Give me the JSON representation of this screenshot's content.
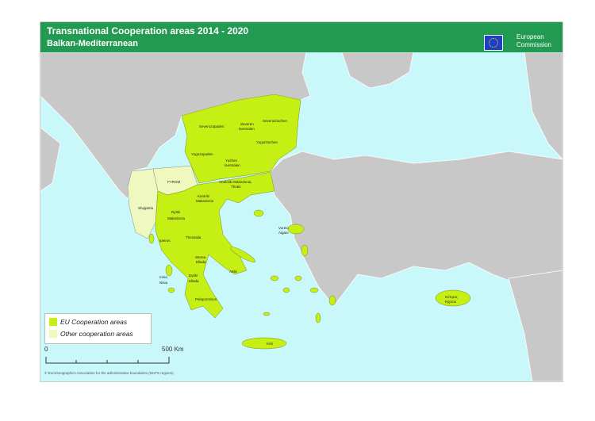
{
  "header": {
    "title": "Transnational Cooperation areas 2014 - 2020",
    "subtitle": "Balkan-Mediterranean",
    "logo_text_1": "European",
    "logo_text_2": "Commission"
  },
  "colors": {
    "eu_area": "#c6ef14",
    "other_area": "#eef8bf",
    "land": "#c8c8c8",
    "sea": "#c9f8fb",
    "header": "#239a52"
  },
  "regions": {
    "severozapaden": "Severozapaden",
    "severen_1": "Severen",
    "severen_2": "tsentralen",
    "severoiztochen": "Severoiztochen",
    "yugoiztochen": "Yugoiztochen",
    "yugozapaden": "Yugozapaden",
    "yuzhen_1": "Yuzhen",
    "yuzhen_2": "tsentralen",
    "fyrom": "FYROM",
    "shqiperia": "Shqipëria",
    "amth_1": "Anatoliki Makedonia,",
    "amth_2": "Thraki",
    "kentriki_1": "Kentriki",
    "kentriki_2": "Makedonia",
    "dytiki_mak_1": "Dytiki",
    "dytiki_mak_2": "Makedonia",
    "ipeiros": "Ipeiros",
    "thessalia": "Thessalia",
    "sterea_1": "Sterea",
    "sterea_2": "Ellada",
    "ionia_1": "Ionia",
    "ionia_2": "Nisia",
    "dytiki_ell_1": "Dytiki",
    "dytiki_ell_2": "Ellada",
    "attiki": "Attiki",
    "peloponnisos": "Peloponnisos",
    "voreio_1": "Voreio",
    "voreio_2": "Aigaio",
    "kriti": "Kriti",
    "kypros_1": "Κύπρος",
    "kypros_2": "Kýpros"
  },
  "legend": [
    {
      "label": "EU Cooperation areas"
    },
    {
      "label": "Other cooperation areas"
    }
  ],
  "scale": {
    "start": "0",
    "end": "500 Km"
  },
  "credit": "© EuroGeographics Association for the administrative boundaries (NUTS regions)"
}
